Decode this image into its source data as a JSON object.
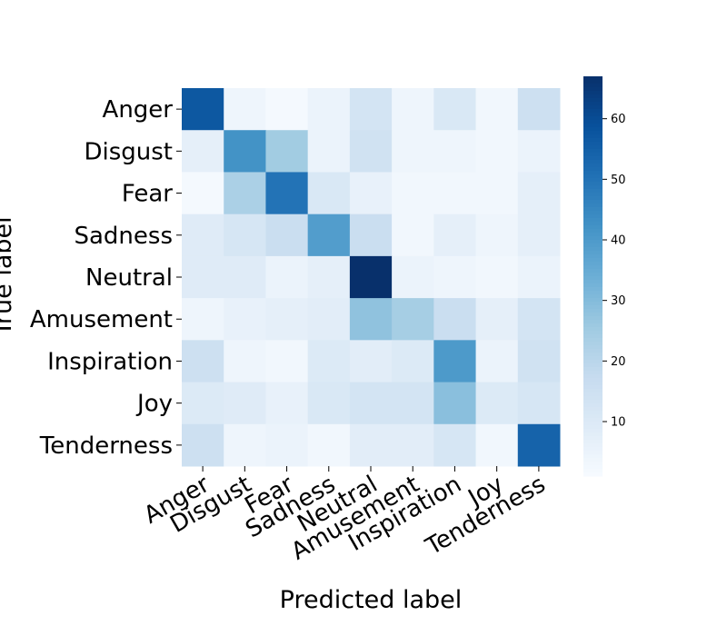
{
  "chart_data": {
    "type": "heatmap",
    "title": "",
    "xlabel": "Predicted label",
    "ylabel": "True label",
    "categories": [
      "Anger",
      "Disgust",
      "Fear",
      "Sadness",
      "Neutral",
      "Amusement",
      "Inspiration",
      "Joy",
      "Tenderness"
    ],
    "values": [
      [
        57,
        4,
        2,
        5,
        13,
        4,
        11,
        3,
        15
      ],
      [
        7,
        42,
        25,
        5,
        14,
        4,
        4,
        3,
        5
      ],
      [
        2,
        23,
        50,
        11,
        6,
        3,
        3,
        3,
        7
      ],
      [
        9,
        12,
        16,
        39,
        16,
        3,
        7,
        4,
        7
      ],
      [
        9,
        9,
        5,
        7,
        67,
        5,
        4,
        3,
        5
      ],
      [
        4,
        6,
        7,
        8,
        28,
        24,
        16,
        7,
        13
      ],
      [
        15,
        4,
        3,
        10,
        8,
        10,
        40,
        5,
        14
      ],
      [
        10,
        9,
        6,
        11,
        13,
        13,
        29,
        10,
        12
      ],
      [
        15,
        4,
        5,
        3,
        8,
        8,
        12,
        3,
        54
      ]
    ],
    "colorbar": {
      "min": 1,
      "max": 67,
      "ticks": [
        10,
        20,
        30,
        40,
        50,
        60
      ],
      "colormap": "Blues"
    }
  }
}
